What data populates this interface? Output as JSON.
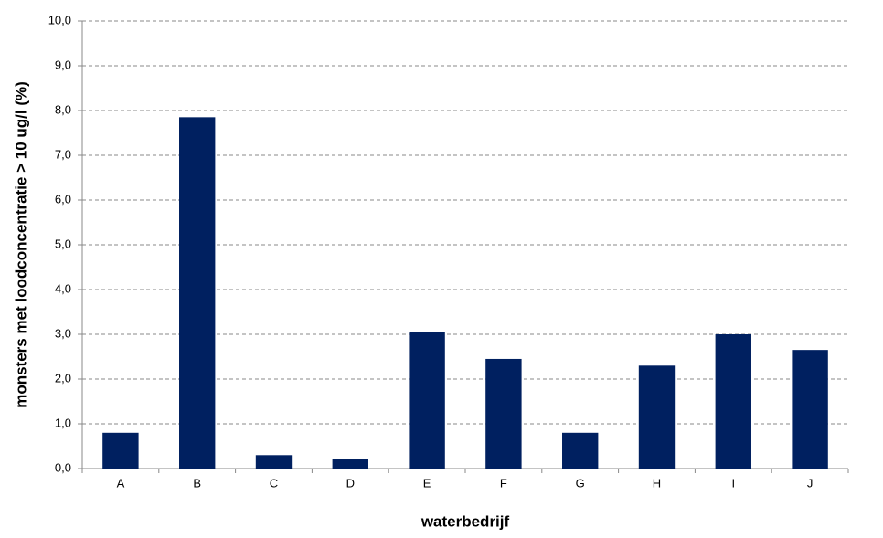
{
  "chart_data": {
    "type": "bar",
    "x_label": "waterbedrijf",
    "y_label": "monsters met loodconcentratie > 10 ug/l (%)",
    "categories": [
      "A",
      "B",
      "C",
      "D",
      "E",
      "F",
      "G",
      "H",
      "I",
      "J"
    ],
    "values": [
      0.8,
      7.85,
      0.3,
      0.22,
      3.05,
      2.45,
      0.8,
      2.3,
      3.0,
      2.65
    ],
    "color": "#002060",
    "ylim": [
      0,
      10
    ],
    "yticks": [
      {
        "value": 0,
        "label": "0,0"
      },
      {
        "value": 1,
        "label": "1,0"
      },
      {
        "value": 2,
        "label": "2,0"
      },
      {
        "value": 3,
        "label": "3,0"
      },
      {
        "value": 4,
        "label": "4,0"
      },
      {
        "value": 5,
        "label": "5,0"
      },
      {
        "value": 6,
        "label": "6,0"
      },
      {
        "value": 7,
        "label": "7,0"
      },
      {
        "value": 8,
        "label": "8,0"
      },
      {
        "value": 9,
        "label": "9,0"
      },
      {
        "value": 10,
        "label": "10,0"
      }
    ],
    "grid": true
  }
}
